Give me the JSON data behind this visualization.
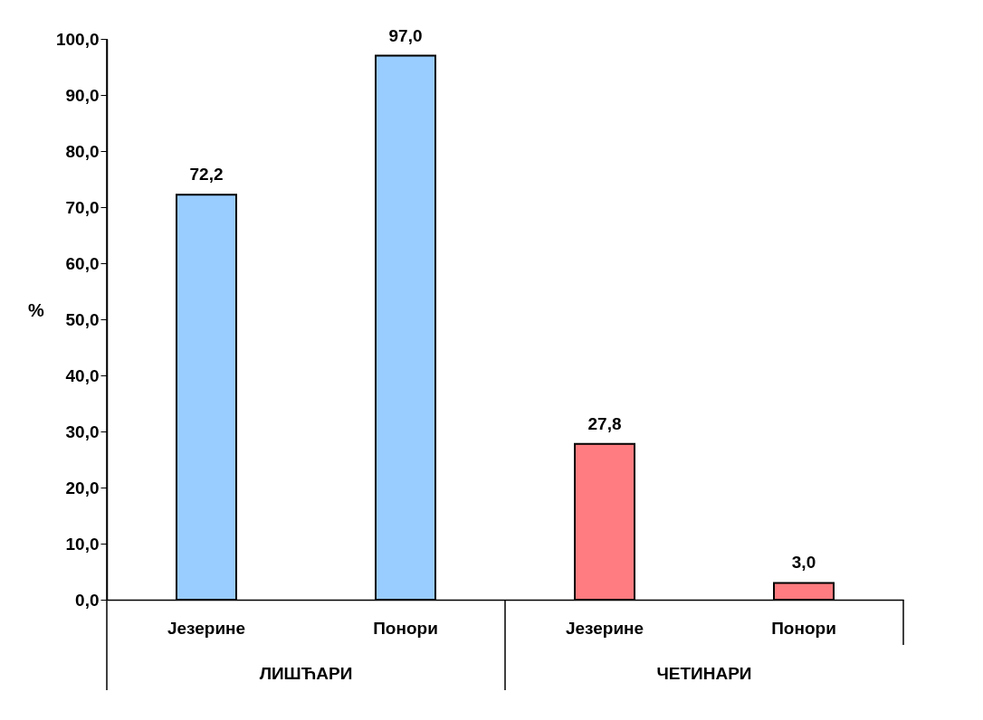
{
  "chart_data": {
    "type": "bar",
    "ylabel": "%",
    "categories": [
      "Језерине",
      "Понори",
      "Језерине",
      "Понори"
    ],
    "values": [
      72.2,
      97.0,
      27.8,
      3.0
    ],
    "colors": [
      "#99ccff",
      "#99ccff",
      "#ff7c80",
      "#ff7c80"
    ],
    "value_labels": [
      "72,2",
      "97,0",
      "27,8",
      "3,0"
    ],
    "annotations": [
      "ЛИШЋАРИ",
      "ЧЕТИНАРИ"
    ],
    "ylim": [
      0,
      100
    ],
    "yticks": [
      {
        "value": 0,
        "label": "0,0"
      },
      {
        "value": 10,
        "label": "10,0"
      },
      {
        "value": 20,
        "label": "20,0"
      },
      {
        "value": 30,
        "label": "30,0"
      },
      {
        "value": 40,
        "label": "40,0"
      },
      {
        "value": 50,
        "label": "50,0"
      },
      {
        "value": 60,
        "label": "60,0"
      },
      {
        "value": 70,
        "label": "70,0"
      },
      {
        "value": 80,
        "label": "80,0"
      },
      {
        "value": 90,
        "label": "90,0"
      },
      {
        "value": 100,
        "label": "100,0"
      }
    ],
    "grid": false
  }
}
